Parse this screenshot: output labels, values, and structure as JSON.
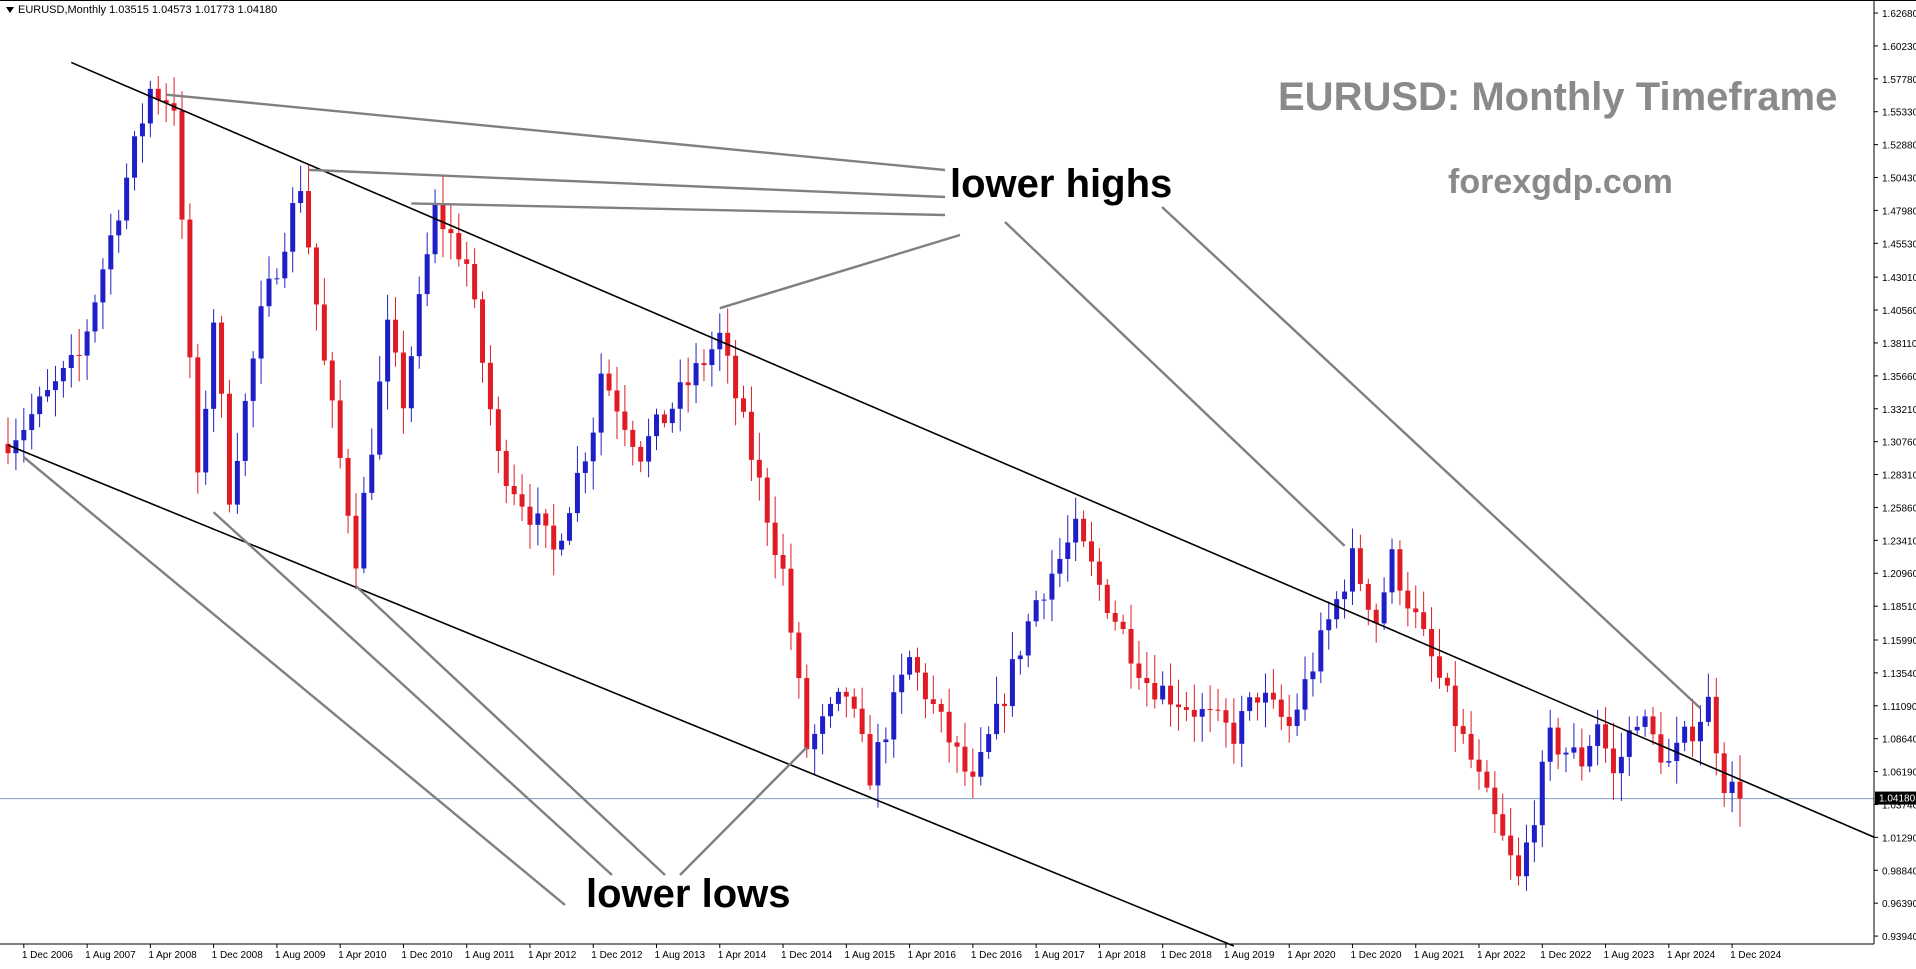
{
  "window": {
    "symbol_line": "EURUSD,Monthly  1.03515 1.04573 1.01773 1.04180"
  },
  "watermark": {
    "title": "EURUSD: Monthly Timeframe",
    "site": "forexgdp.com"
  },
  "annotations": {
    "lower_highs": "lower highs",
    "lower_lows": "lower lows"
  },
  "colors": {
    "bull": "#1f1fc8",
    "bear": "#e01b24",
    "wick": "#000000",
    "trendline": "#000000",
    "pointer": "#808080",
    "current_price_line": "#7f9fc8",
    "axis": "#000000"
  },
  "chart_data": {
    "type": "candlestick",
    "timeframe": "Monthly",
    "ylim": [
      0.9335,
      1.6365
    ],
    "xlim": [
      "2006-10",
      "2025-01"
    ],
    "y_ticks": [
      "1.62680",
      "1.60230",
      "1.57780",
      "1.55330",
      "1.52880",
      "1.50430",
      "1.47980",
      "1.45530",
      "1.43010",
      "1.40560",
      "1.38110",
      "1.35660",
      "1.33210",
      "1.30760",
      "1.28310",
      "1.25860",
      "1.23410",
      "1.20960",
      "1.18510",
      "1.15990",
      "1.13540",
      "1.11090",
      "1.08640",
      "1.06190",
      "1.03740",
      "1.01290",
      "0.98840",
      "0.96390",
      "0.93940"
    ],
    "x_ticks": [
      "1 Dec 2006",
      "1 Aug 2007",
      "1 Apr 2008",
      "1 Dec 2008",
      "1 Aug 2009",
      "1 Apr 2010",
      "1 Dec 2010",
      "1 Aug 2011",
      "1 Apr 2012",
      "1 Dec 2012",
      "1 Aug 2013",
      "1 Apr 2014",
      "1 Dec 2014",
      "1 Aug 2015",
      "1 Apr 2016",
      "1 Dec 2016",
      "1 Aug 2017",
      "1 Apr 2018",
      "1 Dec 2018",
      "1 Aug 2019",
      "1 Apr 2020",
      "1 Dec 2020",
      "1 Aug 2021",
      "1 Apr 2022",
      "1 Dec 2022",
      "1 Aug 2023",
      "1 Apr 2024",
      "1 Dec 2024"
    ],
    "current_price": "1.04180",
    "series_anchors": [
      [
        "2006-10",
        1.31
      ],
      [
        "2006-12",
        1.32
      ],
      [
        "2007-07",
        1.37
      ],
      [
        "2007-11",
        1.46
      ],
      [
        "2008-04",
        1.57
      ],
      [
        "2008-07",
        1.56
      ],
      [
        "2008-10",
        1.275
      ],
      [
        "2008-12",
        1.4
      ],
      [
        "2009-02",
        1.27
      ],
      [
        "2009-06",
        1.4
      ],
      [
        "2009-11",
        1.5
      ],
      [
        "2010-02",
        1.365
      ],
      [
        "2010-06",
        1.223
      ],
      [
        "2010-10",
        1.39
      ],
      [
        "2010-12",
        1.338
      ],
      [
        "2011-04",
        1.48
      ],
      [
        "2011-08",
        1.44
      ],
      [
        "2011-12",
        1.295
      ],
      [
        "2012-07",
        1.225
      ],
      [
        "2012-12",
        1.32
      ],
      [
        "2013-01",
        1.36
      ],
      [
        "2013-06",
        1.3
      ],
      [
        "2014-04",
        1.385
      ],
      [
        "2014-12",
        1.21
      ],
      [
        "2015-03",
        1.08
      ],
      [
        "2015-08",
        1.12
      ],
      [
        "2015-11",
        1.06
      ],
      [
        "2016-04",
        1.145
      ],
      [
        "2016-12",
        1.05
      ],
      [
        "2017-08",
        1.19
      ],
      [
        "2018-01",
        1.24
      ],
      [
        "2018-04",
        1.2
      ],
      [
        "2018-10",
        1.13
      ],
      [
        "2019-09",
        1.09
      ],
      [
        "2019-12",
        1.12
      ],
      [
        "2020-04",
        1.095
      ],
      [
        "2020-12",
        1.22
      ],
      [
        "2021-03",
        1.175
      ],
      [
        "2021-05",
        1.22
      ],
      [
        "2021-11",
        1.13
      ],
      [
        "2022-04",
        1.055
      ],
      [
        "2022-09",
        0.98
      ],
      [
        "2023-01",
        1.085
      ],
      [
        "2023-05",
        1.07
      ],
      [
        "2023-07",
        1.1
      ],
      [
        "2023-09",
        1.058
      ],
      [
        "2023-12",
        1.105
      ],
      [
        "2024-04",
        1.067
      ],
      [
        "2024-09",
        1.113
      ],
      [
        "2024-11",
        1.055
      ],
      [
        "2025-01",
        1.0418
      ]
    ],
    "trendlines": [
      {
        "name": "upper-channel",
        "from": [
          "2007-06",
          1.59
        ],
        "to": [
          "2025-01",
          1.056
        ]
      },
      {
        "name": "lower-channel",
        "from": [
          "2006-10",
          1.305
        ],
        "to": [
          "2019-09",
          0.932
        ]
      }
    ],
    "pointers": [
      {
        "to_label": "lower_highs",
        "from": [
          "2008-06",
          1.566
        ],
        "to_xy": [
          945,
          170
        ]
      },
      {
        "to_label": "lower_highs",
        "from": [
          "2009-12",
          1.51
        ],
        "to_xy": [
          945,
          197
        ]
      },
      {
        "to_label": "lower_highs",
        "from": [
          "2011-01",
          1.485
        ],
        "to_xy": [
          945,
          215
        ]
      },
      {
        "to_label": "lower_highs",
        "from": [
          "2014-04",
          1.407
        ],
        "to_xy": [
          960,
          235
        ]
      },
      {
        "to_label": "lower_highs",
        "from": [
          "2020-11",
          1.23
        ],
        "from_label_xy": [
          1005,
          222
        ]
      },
      {
        "to_label": "lower_highs",
        "from": [
          "2024-08",
          1.109
        ],
        "from_label_xy": [
          1162,
          207
        ]
      },
      {
        "to_label": "lower_lows",
        "from": [
          "2006-12",
          1.296
        ],
        "to_xy": [
          565,
          905
        ]
      },
      {
        "to_label": "lower_lows",
        "from": [
          "2008-12",
          1.255
        ],
        "to_xy": [
          612,
          875
        ]
      },
      {
        "to_label": "lower_lows",
        "from": [
          "2010-06",
          1.2
        ],
        "to_xy": [
          665,
          875
        ]
      },
      {
        "to_label": "lower_lows",
        "from": [
          "2015-03",
          1.08
        ],
        "to_xy": [
          680,
          875
        ]
      }
    ]
  }
}
